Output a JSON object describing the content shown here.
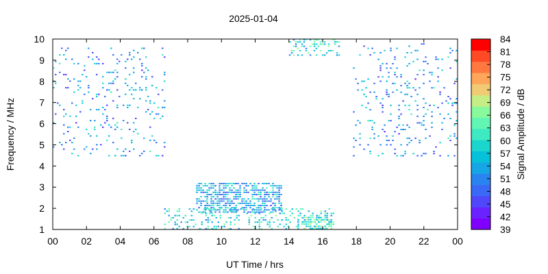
{
  "chart_data": {
    "type": "heatmap",
    "title": "2025-01-04",
    "xlabel": "UT Time / hrs",
    "ylabel": "Frequency / MHz",
    "colorbar_label": "Signal Amplitude / dB",
    "xlim": [
      0,
      24
    ],
    "ylim": [
      1,
      10
    ],
    "x_ticks": [
      "00",
      "02",
      "04",
      "06",
      "08",
      "10",
      "12",
      "14",
      "16",
      "18",
      "20",
      "22",
      "00"
    ],
    "y_ticks": [
      "1",
      "2",
      "3",
      "4",
      "5",
      "6",
      "7",
      "8",
      "9",
      "10"
    ],
    "color_range": [
      39,
      84
    ],
    "colorbar_ticks": [
      "39",
      "42",
      "45",
      "48",
      "51",
      "54",
      "57",
      "60",
      "63",
      "66",
      "69",
      "72",
      "75",
      "78",
      "81",
      "84"
    ],
    "colorscale": [
      "#8000ff",
      "#6a23fe",
      "#5047fb",
      "#3a69f5",
      "#2a84ef",
      "#16a6e6",
      "#07c0d9",
      "#1ad6cd",
      "#3eeac2",
      "#62f6b4",
      "#89fa9c",
      "#c4ed86",
      "#f0cb74",
      "#ffa65b",
      "#ff7840",
      "#ff4a25",
      "#ff0000"
    ],
    "regions": [
      {
        "t": [
          0.0,
          6.6
        ],
        "f": [
          4.5,
          9.7
        ],
        "value": 52,
        "density": "sparse"
      },
      {
        "t": [
          17.8,
          24.0
        ],
        "f": [
          4.5,
          9.8
        ],
        "value": 52,
        "density": "sparse"
      },
      {
        "t": [
          14.0,
          17.0
        ],
        "f": [
          9.2,
          10.0
        ],
        "value": 58,
        "density": "medium"
      },
      {
        "t": [
          8.5,
          13.5
        ],
        "f": [
          1.8,
          3.2
        ],
        "value": 54,
        "density": "dense"
      },
      {
        "t": [
          6.6,
          16.6
        ],
        "f": [
          1.0,
          2.0
        ],
        "value": 58,
        "density": "medium"
      },
      {
        "t": [
          14.5,
          16.5
        ],
        "f": [
          1.0,
          1.6
        ],
        "value": 62,
        "density": "dense"
      }
    ]
  }
}
